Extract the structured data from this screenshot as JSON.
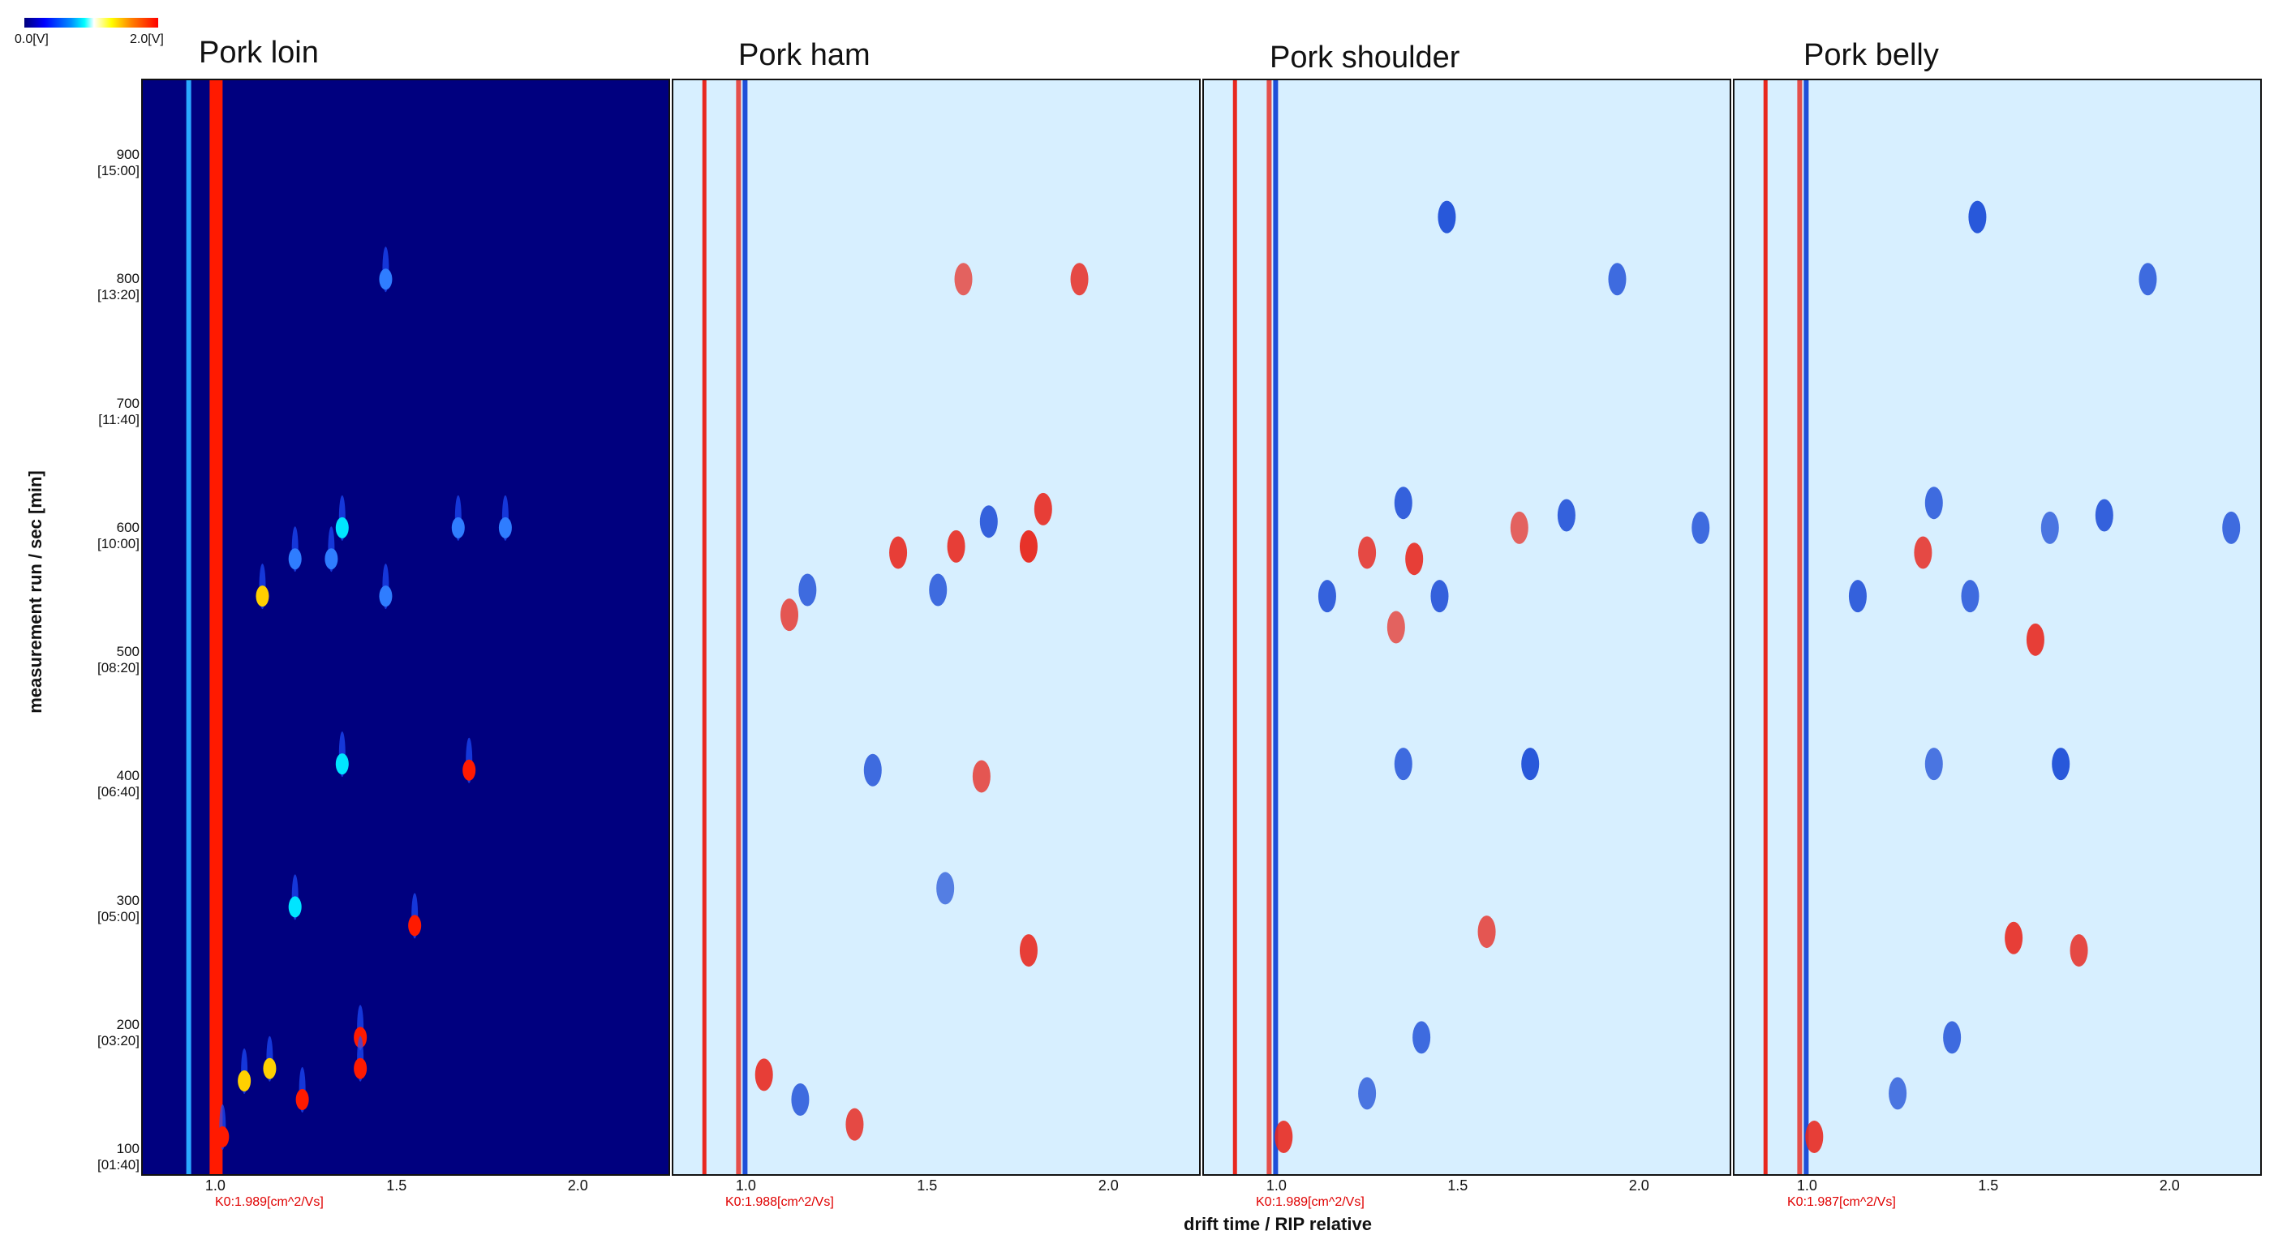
{
  "colorbar": {
    "min_label": "0.0[V]",
    "max_label": "2.0[V]"
  },
  "axes": {
    "xlabel": "drift time / RIP relative",
    "ylabel": "measurement run / sec [min]",
    "xlim": [
      0.8,
      2.25
    ],
    "ylim": [
      80,
      960
    ],
    "x_ticks": [
      "1.0",
      "1.5",
      "2.0"
    ],
    "y_ticks": [
      {
        "value": 100,
        "sec": "100",
        "min": "[01:40]"
      },
      {
        "value": 200,
        "sec": "200",
        "min": "[03:20]"
      },
      {
        "value": 300,
        "sec": "300",
        "min": "[05:00]"
      },
      {
        "value": 400,
        "sec": "400",
        "min": "[06:40]"
      },
      {
        "value": 500,
        "sec": "500",
        "min": "[08:20]"
      },
      {
        "value": 600,
        "sec": "600",
        "min": "[10:00]"
      },
      {
        "value": 700,
        "sec": "700",
        "min": "[11:40]"
      },
      {
        "value": 800,
        "sec": "800",
        "min": "[13:20]"
      },
      {
        "value": 900,
        "sec": "900",
        "min": "[15:00]"
      }
    ]
  },
  "colors": {
    "background_abs": "#00007f",
    "background_diff": "#d7efff",
    "higher": "#e8271e",
    "lower": "#1f4fd8",
    "k0_text": "#e00000"
  },
  "chart_data": {
    "type": "heatmap",
    "panels": [
      {
        "title": "Pork loin",
        "mode": "absolute",
        "k0": "K0:1.989[cm^2/Vs]",
        "peaks": [
          {
            "x": 1.47,
            "y": 800,
            "i": 0.45
          },
          {
            "x": 1.35,
            "y": 600,
            "i": 0.55
          },
          {
            "x": 1.67,
            "y": 600,
            "i": 0.45
          },
          {
            "x": 1.8,
            "y": 600,
            "i": 0.3
          },
          {
            "x": 1.22,
            "y": 575,
            "i": 0.4
          },
          {
            "x": 1.32,
            "y": 575,
            "i": 0.45
          },
          {
            "x": 1.13,
            "y": 545,
            "i": 0.7
          },
          {
            "x": 1.47,
            "y": 545,
            "i": 0.35
          },
          {
            "x": 1.35,
            "y": 410,
            "i": 0.65
          },
          {
            "x": 1.7,
            "y": 405,
            "i": 0.95
          },
          {
            "x": 1.22,
            "y": 295,
            "i": 0.6
          },
          {
            "x": 1.55,
            "y": 280,
            "i": 1.0
          },
          {
            "x": 1.4,
            "y": 190,
            "i": 1.0
          },
          {
            "x": 1.15,
            "y": 165,
            "i": 0.85
          },
          {
            "x": 1.4,
            "y": 165,
            "i": 0.9
          },
          {
            "x": 1.08,
            "y": 155,
            "i": 0.8
          },
          {
            "x": 1.24,
            "y": 140,
            "i": 0.95
          },
          {
            "x": 1.02,
            "y": 110,
            "i": 0.9
          }
        ]
      },
      {
        "title": "Pork ham",
        "mode": "difference",
        "k0": "K0:1.988[cm^2/Vs]",
        "peaks": [
          {
            "x": 1.92,
            "y": 800,
            "d": 0.8
          },
          {
            "x": 1.6,
            "y": 800,
            "d": 0.6
          },
          {
            "x": 1.82,
            "y": 615,
            "d": 0.9
          },
          {
            "x": 1.67,
            "y": 605,
            "d": -0.9
          },
          {
            "x": 1.78,
            "y": 585,
            "d": 1.0
          },
          {
            "x": 1.58,
            "y": 585,
            "d": 0.9
          },
          {
            "x": 1.42,
            "y": 580,
            "d": 0.9
          },
          {
            "x": 1.17,
            "y": 550,
            "d": -0.8
          },
          {
            "x": 1.53,
            "y": 550,
            "d": -0.8
          },
          {
            "x": 1.12,
            "y": 530,
            "d": 0.7
          },
          {
            "x": 1.35,
            "y": 405,
            "d": -0.8
          },
          {
            "x": 1.65,
            "y": 400,
            "d": 0.7
          },
          {
            "x": 1.55,
            "y": 310,
            "d": -0.6
          },
          {
            "x": 1.78,
            "y": 260,
            "d": 0.9
          },
          {
            "x": 1.05,
            "y": 160,
            "d": 0.9
          },
          {
            "x": 1.15,
            "y": 140,
            "d": -0.8
          },
          {
            "x": 1.3,
            "y": 120,
            "d": 0.8
          }
        ]
      },
      {
        "title": "Pork shoulder",
        "mode": "difference",
        "k0": "K0:1.989[cm^2/Vs]",
        "peaks": [
          {
            "x": 1.47,
            "y": 850,
            "d": -1.0
          },
          {
            "x": 1.94,
            "y": 800,
            "d": -0.8
          },
          {
            "x": 1.35,
            "y": 620,
            "d": -0.9
          },
          {
            "x": 1.8,
            "y": 610,
            "d": -0.9
          },
          {
            "x": 2.17,
            "y": 600,
            "d": -0.8
          },
          {
            "x": 1.67,
            "y": 600,
            "d": 0.6
          },
          {
            "x": 1.38,
            "y": 575,
            "d": 0.9
          },
          {
            "x": 1.25,
            "y": 580,
            "d": 0.8
          },
          {
            "x": 1.14,
            "y": 545,
            "d": -0.9
          },
          {
            "x": 1.45,
            "y": 545,
            "d": -0.9
          },
          {
            "x": 1.33,
            "y": 520,
            "d": 0.6
          },
          {
            "x": 1.7,
            "y": 410,
            "d": -1.0
          },
          {
            "x": 1.35,
            "y": 410,
            "d": -0.8
          },
          {
            "x": 1.58,
            "y": 275,
            "d": 0.7
          },
          {
            "x": 1.4,
            "y": 190,
            "d": -0.8
          },
          {
            "x": 1.25,
            "y": 145,
            "d": -0.7
          },
          {
            "x": 1.02,
            "y": 110,
            "d": 0.9
          }
        ]
      },
      {
        "title": "Pork belly",
        "mode": "difference",
        "k0": "K0:1.987[cm^2/Vs]",
        "peaks": [
          {
            "x": 1.47,
            "y": 850,
            "d": -1.0
          },
          {
            "x": 1.94,
            "y": 800,
            "d": -0.8
          },
          {
            "x": 1.35,
            "y": 620,
            "d": -0.8
          },
          {
            "x": 1.82,
            "y": 610,
            "d": -0.9
          },
          {
            "x": 2.17,
            "y": 600,
            "d": -0.8
          },
          {
            "x": 1.67,
            "y": 600,
            "d": -0.7
          },
          {
            "x": 1.32,
            "y": 580,
            "d": 0.8
          },
          {
            "x": 1.14,
            "y": 545,
            "d": -0.9
          },
          {
            "x": 1.45,
            "y": 545,
            "d": -0.8
          },
          {
            "x": 1.63,
            "y": 510,
            "d": 0.9
          },
          {
            "x": 1.7,
            "y": 410,
            "d": -1.0
          },
          {
            "x": 1.35,
            "y": 410,
            "d": -0.7
          },
          {
            "x": 1.57,
            "y": 270,
            "d": 0.9
          },
          {
            "x": 1.75,
            "y": 260,
            "d": 0.8
          },
          {
            "x": 1.4,
            "y": 190,
            "d": -0.8
          },
          {
            "x": 1.25,
            "y": 145,
            "d": -0.7
          },
          {
            "x": 1.02,
            "y": 110,
            "d": 0.9
          }
        ]
      }
    ]
  }
}
